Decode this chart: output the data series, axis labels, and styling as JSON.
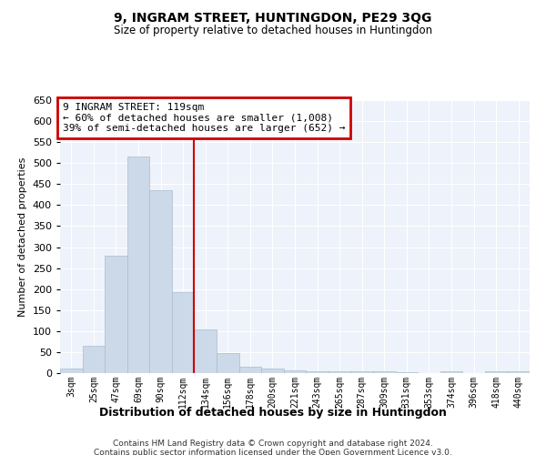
{
  "title": "9, INGRAM STREET, HUNTINGDON, PE29 3QG",
  "subtitle": "Size of property relative to detached houses in Huntingdon",
  "xlabel": "Distribution of detached houses by size in Huntingdon",
  "ylabel": "Number of detached properties",
  "footer_line1": "Contains HM Land Registry data © Crown copyright and database right 2024.",
  "footer_line2": "Contains public sector information licensed under the Open Government Licence v3.0.",
  "annotation_line1": "9 INGRAM STREET: 119sqm",
  "annotation_line2": "← 60% of detached houses are smaller (1,008)",
  "annotation_line3": "39% of semi-detached houses are larger (652) →",
  "bar_color": "#ccd9e8",
  "bar_edge_color": "#aabcce",
  "vline_color": "#cc0000",
  "annotation_box_edge_color": "#cc0000",
  "background_color": "#eef2fa",
  "grid_color": "#ffffff",
  "categories": [
    "3sqm",
    "25sqm",
    "47sqm",
    "69sqm",
    "90sqm",
    "112sqm",
    "134sqm",
    "156sqm",
    "178sqm",
    "200sqm",
    "221sqm",
    "243sqm",
    "265sqm",
    "287sqm",
    "309sqm",
    "331sqm",
    "353sqm",
    "374sqm",
    "396sqm",
    "418sqm",
    "440sqm"
  ],
  "values": [
    10,
    65,
    280,
    515,
    435,
    193,
    103,
    47,
    15,
    10,
    7,
    5,
    5,
    4,
    4,
    3,
    0,
    5,
    0,
    5,
    5
  ],
  "ylim": [
    0,
    650
  ],
  "yticks": [
    0,
    50,
    100,
    150,
    200,
    250,
    300,
    350,
    400,
    450,
    500,
    550,
    600,
    650
  ],
  "vline_x_index": 5.5,
  "fig_width": 6.0,
  "fig_height": 5.0,
  "dpi": 100
}
